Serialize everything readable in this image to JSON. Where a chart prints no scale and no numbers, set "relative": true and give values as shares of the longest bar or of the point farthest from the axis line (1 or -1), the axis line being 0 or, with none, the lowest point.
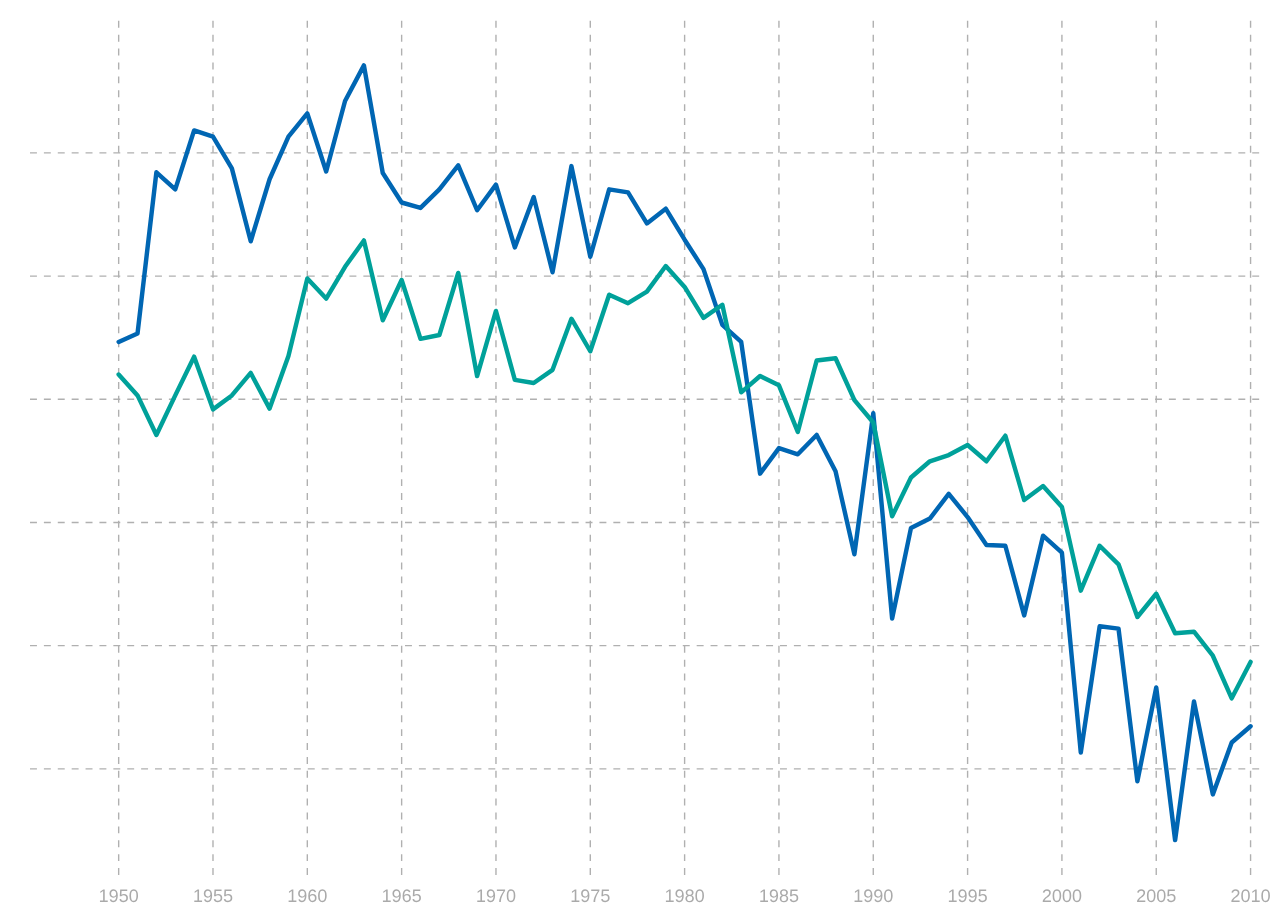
{
  "chart_data": {
    "type": "line",
    "relative": true,
    "x": [
      1950,
      1951,
      1952,
      1953,
      1954,
      1955,
      1956,
      1957,
      1958,
      1959,
      1960,
      1961,
      1962,
      1963,
      1964,
      1965,
      1966,
      1967,
      1968,
      1969,
      1970,
      1971,
      1972,
      1973,
      1974,
      1975,
      1976,
      1977,
      1978,
      1979,
      1980,
      1981,
      1982,
      1983,
      1984,
      1985,
      1986,
      1987,
      1988,
      1989,
      1990,
      1991,
      1992,
      1993,
      1994,
      1995,
      1996,
      1997,
      1998,
      1999,
      2000,
      2001,
      2002,
      2003,
      2004,
      2005,
      2006,
      2007,
      2008,
      2009,
      2010
    ],
    "xlim": [
      1945.3,
      2010.5
    ],
    "xticks": [
      1950,
      1955,
      1960,
      1965,
      1970,
      1975,
      1980,
      1985,
      1990,
      1995,
      2000,
      2005,
      2010
    ],
    "tick_labels": "x",
    "grid": true,
    "line_style": "solid",
    "marker": "none",
    "series": [
      {
        "color": "#0066b3",
        "values": [
          0.643,
          0.654,
          0.862,
          0.84,
          0.916,
          0.908,
          0.867,
          0.773,
          0.853,
          0.908,
          0.938,
          0.863,
          0.954,
          1,
          0.861,
          0.823,
          0.816,
          0.84,
          0.871,
          0.813,
          0.846,
          0.765,
          0.83,
          0.733,
          0.87,
          0.753,
          0.84,
          0.836,
          0.796,
          0.815,
          0.775,
          0.737,
          0.665,
          0.643,
          0.473,
          0.506,
          0.498,
          0.523,
          0.476,
          0.369,
          0.551,
          0.286,
          0.403,
          0.415,
          0.447,
          0.417,
          0.381,
          0.38,
          0.29,
          0.393,
          0.371,
          0.113,
          0.276,
          0.273,
          0.076,
          0.197,
          0,
          0.179,
          0.059,
          0.126,
          0.147
        ]
      },
      {
        "color": "#00a19a",
        "values": [
          0.601,
          0.574,
          0.523,
          0.574,
          0.624,
          0.556,
          0.574,
          0.603,
          0.557,
          0.625,
          0.725,
          0.699,
          0.74,
          0.774,
          0.671,
          0.723,
          0.647,
          0.652,
          0.732,
          0.599,
          0.683,
          0.594,
          0.59,
          0.607,
          0.673,
          0.631,
          0.704,
          0.693,
          0.708,
          0.741,
          0.714,
          0.674,
          0.691,
          0.578,
          0.599,
          0.587,
          0.527,
          0.619,
          0.622,
          0.568,
          0.539,
          0.418,
          0.468,
          0.489,
          0.497,
          0.51,
          0.489,
          0.522,
          0.439,
          0.457,
          0.43,
          0.322,
          0.38,
          0.356,
          0.288,
          0.318,
          0.267,
          0.269,
          0.238,
          0.183,
          0.23
        ]
      }
    ]
  }
}
